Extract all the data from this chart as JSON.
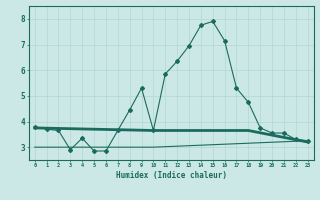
{
  "xlabel": "Humidex (Indice chaleur)",
  "ylabel": "",
  "bg_color": "#cce8e6",
  "grid_color": "#b0d8d5",
  "line_color": "#1a6b5e",
  "line1_x": [
    0,
    1,
    2,
    3,
    4,
    5,
    6,
    7,
    8,
    9,
    10,
    11,
    12,
    13,
    14,
    15,
    16,
    17,
    18,
    19,
    20,
    21,
    22,
    23
  ],
  "line1_y": [
    3.8,
    3.7,
    3.65,
    2.9,
    3.35,
    2.85,
    2.85,
    3.65,
    4.45,
    5.3,
    3.65,
    5.85,
    6.35,
    6.95,
    7.75,
    7.9,
    7.15,
    5.3,
    4.75,
    3.75,
    3.55,
    3.55,
    3.3,
    3.25
  ],
  "line2_x": [
    0,
    10,
    18,
    23
  ],
  "line2_y": [
    3.75,
    3.65,
    3.65,
    3.2
  ],
  "line3_x": [
    0,
    10,
    23
  ],
  "line3_y": [
    3.0,
    3.0,
    3.25
  ],
  "xlim": [
    -0.5,
    23.5
  ],
  "ylim": [
    2.5,
    8.5
  ],
  "yticks": [
    3,
    4,
    5,
    6,
    7,
    8
  ],
  "xticks": [
    0,
    1,
    2,
    3,
    4,
    5,
    6,
    7,
    8,
    9,
    10,
    11,
    12,
    13,
    14,
    15,
    16,
    17,
    18,
    19,
    20,
    21,
    22,
    23
  ],
  "xtick_labels": [
    "0",
    "1",
    "2",
    "3",
    "4",
    "5",
    "6",
    "7",
    "8",
    "9",
    "10",
    "11",
    "12",
    "13",
    "14",
    "15",
    "16",
    "17",
    "18",
    "19",
    "20",
    "21",
    "22",
    "23"
  ]
}
